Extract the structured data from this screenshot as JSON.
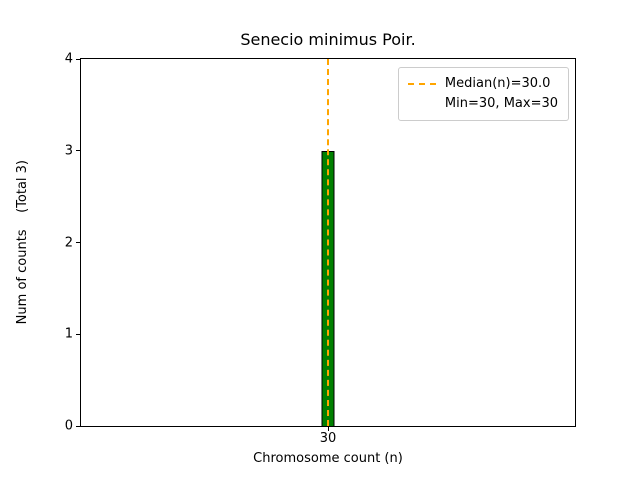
{
  "chart_data": {
    "type": "bar",
    "title": "Senecio minimus Poir.",
    "xlabel": "Chromosome count (n)",
    "ylabel": "Num of counts    (Total 3)",
    "categories": [
      "30"
    ],
    "values": [
      3
    ],
    "ylim": [
      0,
      4
    ],
    "yticks": [
      0,
      1,
      2,
      3,
      4
    ],
    "total_counts": 3,
    "grid": false,
    "colors": {
      "bar_fill": "#008000",
      "bar_edge": "#000000",
      "median_line": "#FFA500"
    },
    "median_line": {
      "x": "30",
      "style": "dashed"
    },
    "legend": {
      "position": "upper right",
      "median_label": "Median(n)=30.0",
      "minmax_label": "Min=30, Max=30"
    }
  }
}
